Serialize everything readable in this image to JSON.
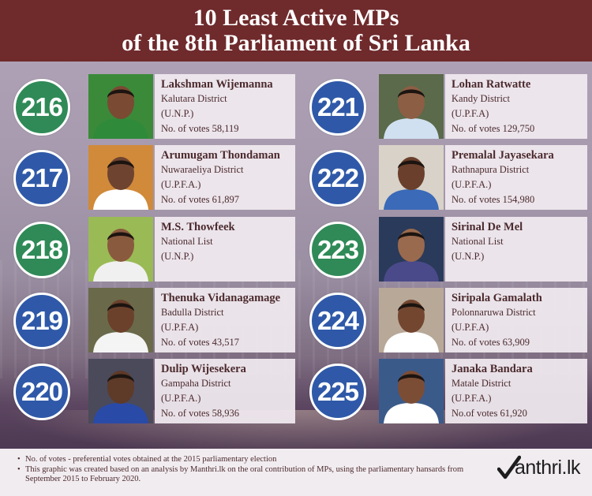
{
  "title": {
    "line1": "10 Least Active MPs",
    "line2": "of the 8th Parliament of Sri Lanka"
  },
  "colors": {
    "header": "#6f2a2c",
    "green_badge": "#2f8a57",
    "blue_badge": "#2f59a8",
    "text": "#4b2a2d"
  },
  "mps_left": [
    {
      "rank": "216",
      "name": "Lakshman Wijemanna",
      "district": "Kalutara District",
      "party": "(U.N.P.)",
      "votes": "No. of votes 58,119",
      "badge_color": "#2f8a57"
    },
    {
      "rank": "217",
      "name": "Arumugam Thondaman",
      "district": "Nuwaraeliya District",
      "party": "(U.P.F.A.)",
      "votes": "No. of votes 61,897",
      "badge_color": "#2f59a8"
    },
    {
      "rank": "218",
      "name": "M.S. Thowfeek",
      "district": "National List",
      "party": "(U.N.P.)",
      "votes": "",
      "badge_color": "#2f8a57"
    },
    {
      "rank": "219",
      "name": "Thenuka Vidanagamage",
      "district": "Badulla District",
      "party": "(U.P.F.A)",
      "votes": "No. of votes 43,517",
      "badge_color": "#2f59a8"
    },
    {
      "rank": "220",
      "name": "Dulip Wijesekera",
      "district": "Gampaha District",
      "party": "(U.P.F.A.)",
      "votes": "No. of votes 58,936",
      "badge_color": "#2f59a8"
    }
  ],
  "mps_right": [
    {
      "rank": "221",
      "name": "Lohan Ratwatte",
      "district": "Kandy District",
      "party": "(U.P.F.A)",
      "votes": "No. of votes 129,750",
      "badge_color": "#2f59a8"
    },
    {
      "rank": "222",
      "name": "Premalal Jayasekara",
      "district": "Rathnapura District",
      "party": "(U.P.F.A.)",
      "votes": "No. of votes 154,980",
      "badge_color": "#2f59a8"
    },
    {
      "rank": "223",
      "name": "Sirinal De Mel",
      "district": "National List",
      "party": "(U.N.P.)",
      "votes": "",
      "badge_color": "#2f8a57"
    },
    {
      "rank": "224",
      "name": "Siripala Gamalath",
      "district": "Polonnaruwa District",
      "party": "(U.P.F.A)",
      "votes": "No. of votes 63,909",
      "badge_color": "#2f59a8"
    },
    {
      "rank": "225",
      "name": "Janaka Bandara",
      "district": "Matale District",
      "party": "(U.P.F.A.)",
      "votes": "No.of votes 61,920",
      "badge_color": "#2f59a8"
    }
  ],
  "footer": {
    "note1": "No. of votes - preferential votes obtained at the 2015 parliamentary election",
    "note2": "This graphic was created based on an analysis by Manthri.lk on the oral contribution of MPs, using the parliamentary hansards from September 2015  to February 2020."
  },
  "logo": {
    "text": "anthri.lk"
  }
}
